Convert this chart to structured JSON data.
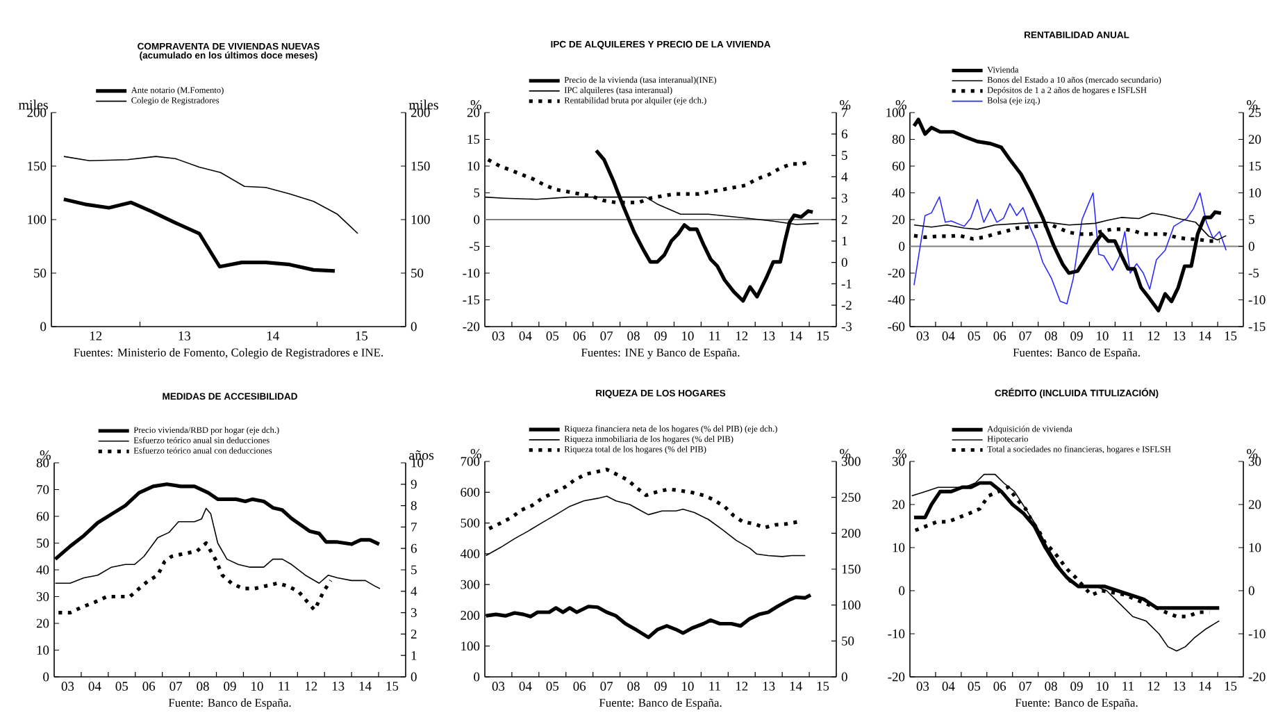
{
  "chart_data": [
    {
      "type": "line",
      "title": "COMPRAVENTA DE VIVIENDAS NUEVAS",
      "subtitle": "(acumulado en los últimos doce meses)",
      "ylabel": "miles",
      "y2label": "miles",
      "legend": "top",
      "xlim": [
        11.5,
        15.5
      ],
      "xticks": [
        {
          "value": 12,
          "label": "12"
        },
        {
          "value": 12.5,
          "label": null
        },
        {
          "value": 13,
          "label": "13"
        },
        {
          "value": 14,
          "label": "14"
        },
        {
          "value": 14.5,
          "label": null
        },
        {
          "value": 15,
          "label": "15"
        }
      ],
      "ylim": [
        0,
        200
      ],
      "yticks": [
        0,
        50,
        100,
        150,
        200
      ],
      "y2lim": [
        0,
        200
      ],
      "y2ticks": [
        0,
        50,
        100,
        150,
        200
      ],
      "series": [
        {
          "name": "Ante notario (M.Fomento)",
          "color": "#000000",
          "x": [
            11.64,
            11.9,
            12.15,
            12.4,
            12.62,
            12.9,
            13.17,
            13.4,
            13.65,
            13.92,
            14.19,
            14.46,
            14.7
          ],
          "values": [
            119,
            114,
            111,
            116,
            108,
            97,
            87,
            56,
            60,
            60,
            58,
            53,
            52
          ]
        },
        {
          "name": "Colegio de Registradores",
          "color": "#000000",
          "x": [
            11.64,
            11.93,
            12.36,
            12.68,
            12.9,
            13.17,
            13.41,
            13.68,
            13.92,
            14.19,
            14.46,
            14.73,
            14.96
          ],
          "values": [
            159,
            155,
            156,
            159,
            157,
            149,
            144,
            131,
            130,
            124,
            117,
            105,
            87
          ]
        }
      ],
      "annotations": [
        "Fuentes: Ministerio de Fomento, Colegio de Registradores e INE."
      ]
    },
    {
      "type": "line",
      "title": "IPC DE ALQUILERES Y PRECIO DE LA VIVIENDA",
      "ylabel": "%",
      "y2label": "%",
      "legend": "top",
      "xlim": [
        2.5,
        15.5
      ],
      "xticks": [
        {
          "value": 3,
          "label": "03"
        },
        {
          "value": 3.5,
          "label": null
        },
        {
          "value": 4,
          "label": "04"
        },
        {
          "value": 4.5,
          "label": null
        },
        {
          "value": 5,
          "label": "05"
        },
        {
          "value": 5.5,
          "label": null
        },
        {
          "value": 6,
          "label": "06"
        },
        {
          "value": 6.5,
          "label": null
        },
        {
          "value": 7,
          "label": "07"
        },
        {
          "value": 7.5,
          "label": null
        },
        {
          "value": 8,
          "label": "08"
        },
        {
          "value": 8.5,
          "label": null
        },
        {
          "value": 9,
          "label": "09"
        },
        {
          "value": 9.5,
          "label": null
        },
        {
          "value": 10,
          "label": "10"
        },
        {
          "value": 10.5,
          "label": null
        },
        {
          "value": 11,
          "label": "11"
        },
        {
          "value": 11.5,
          "label": null
        },
        {
          "value": 12,
          "label": "12"
        },
        {
          "value": 12.5,
          "label": null
        },
        {
          "value": 13,
          "label": "13"
        },
        {
          "value": 13.5,
          "label": null
        },
        {
          "value": 14,
          "label": "14"
        },
        {
          "value": 14.5,
          "label": null
        },
        {
          "value": 15,
          "label": "15"
        }
      ],
      "ylim": [
        -20,
        20
      ],
      "yticks": [
        -20,
        -15,
        -10,
        -5,
        0,
        5,
        10,
        15,
        20
      ],
      "y2lim": [
        -3,
        7
      ],
      "y2ticks": [
        -3,
        -2,
        -1,
        0,
        1,
        2,
        3,
        4,
        5,
        6,
        7
      ],
      "ref_lines": [
        {
          "axis": "y",
          "value": 0,
          "color": "#808080"
        }
      ],
      "series": [
        {
          "name": "Precio de la vivienda (tasa interanual)(INE)",
          "color": "#000000",
          "x": [
            6.62,
            6.91,
            7.25,
            7.59,
            8.02,
            8.37,
            8.62,
            8.88,
            9.14,
            9.4,
            9.65,
            9.88,
            10.08,
            10.34,
            10.6,
            10.85,
            11.1,
            11.37,
            11.71,
            12.05,
            12.31,
            12.57,
            12.91,
            13.17,
            13.43,
            13.6,
            13.77,
            13.94,
            14.2,
            14.46,
            14.63
          ],
          "values": [
            12.9,
            11.2,
            7.3,
            2.9,
            -2.3,
            -5.7,
            -7.9,
            -7.9,
            -6.6,
            -4.0,
            -2.7,
            -1.0,
            -1.8,
            -1.8,
            -4.8,
            -7.4,
            -8.7,
            -11.3,
            -13.5,
            -15.2,
            -12.6,
            -14.4,
            -10.9,
            -7.9,
            -7.9,
            -4.0,
            -0.5,
            0.8,
            0.5,
            1.6,
            1.4
          ]
        },
        {
          "name": "IPC alquileres (tasa interanual)",
          "color": "#000000",
          "x": [
            2.5,
            3.22,
            4.42,
            5.62,
            7.34,
            8.45,
            8.88,
            9.74,
            10.77,
            12.14,
            13.17,
            14.03,
            14.85
          ],
          "values": [
            4.2,
            4.0,
            3.8,
            4.2,
            4.2,
            4.2,
            2.9,
            1.0,
            1.0,
            0.3,
            -0.3,
            -0.9,
            -0.7
          ]
        },
        {
          "name": "Rentabilidad bruta por alquiler (eje dch.)",
          "color": "#000000",
          "axis": "y2",
          "line_style": "dotted",
          "x": [
            2.62,
            3.05,
            3.48,
            3.87,
            4.28,
            4.73,
            5.14,
            5.59,
            6.0,
            6.45,
            6.86,
            7.34,
            7.77,
            8.19,
            8.62,
            9.05,
            9.53,
            10.0,
            10.42,
            10.85,
            11.28,
            11.71,
            12.14,
            12.57,
            13.0,
            13.43,
            13.82,
            14.2,
            14.54
          ],
          "values": [
            4.8,
            4.5,
            4.3,
            4.1,
            3.9,
            3.6,
            3.4,
            3.3,
            3.2,
            3.1,
            2.9,
            2.8,
            2.8,
            2.8,
            3.0,
            3.1,
            3.2,
            3.2,
            3.2,
            3.3,
            3.4,
            3.5,
            3.6,
            3.9,
            4.1,
            4.4,
            4.6,
            4.6,
            4.7
          ]
        }
      ],
      "annotations": [
        "Fuentes: INE y Banco de España."
      ]
    },
    {
      "type": "line",
      "title": "RENTABILIDAD ANUAL",
      "ylabel": "%",
      "y2label": "%",
      "legend": "top",
      "xlim": [
        2.5,
        15.5
      ],
      "xticks": [
        {
          "value": 3,
          "label": "03"
        },
        {
          "value": 3.5,
          "label": null
        },
        {
          "value": 4,
          "label": "04"
        },
        {
          "value": 4.5,
          "label": null
        },
        {
          "value": 5,
          "label": "05"
        },
        {
          "value": 5.5,
          "label": null
        },
        {
          "value": 6,
          "label": "06"
        },
        {
          "value": 6.5,
          "label": null
        },
        {
          "value": 7,
          "label": "07"
        },
        {
          "value": 7.5,
          "label": null
        },
        {
          "value": 8,
          "label": "08"
        },
        {
          "value": 8.5,
          "label": null
        },
        {
          "value": 9,
          "label": "09"
        },
        {
          "value": 9.5,
          "label": null
        },
        {
          "value": 10,
          "label": "10"
        },
        {
          "value": 10.5,
          "label": null
        },
        {
          "value": 11,
          "label": "11"
        },
        {
          "value": 11.5,
          "label": null
        },
        {
          "value": 12,
          "label": "12"
        },
        {
          "value": 12.5,
          "label": null
        },
        {
          "value": 13,
          "label": "13"
        },
        {
          "value": 13.5,
          "label": null
        },
        {
          "value": 14,
          "label": "14"
        },
        {
          "value": 14.5,
          "label": null
        },
        {
          "value": 15,
          "label": "15"
        }
      ],
      "ylim": [
        -60,
        100
      ],
      "yticks": [
        -60,
        -40,
        -20,
        0,
        20,
        40,
        60,
        80,
        100
      ],
      "y2lim": [
        -15,
        25
      ],
      "y2ticks": [
        -15,
        -10,
        -5,
        0,
        5,
        10,
        15,
        20,
        25
      ],
      "ref_lines": [
        {
          "axis": "y",
          "value": 0,
          "color": "#808080"
        }
      ],
      "series": [
        {
          "name": "Vivienda",
          "color": "#000000",
          "axis": "y2",
          "x": [
            2.66,
            2.83,
            3.09,
            3.34,
            3.68,
            4.19,
            4.62,
            5.13,
            5.64,
            6.06,
            6.4,
            6.83,
            7.25,
            7.68,
            8.11,
            8.45,
            8.7,
            9.04,
            9.38,
            9.72,
            9.98,
            10.23,
            10.49,
            10.74,
            11.0,
            11.26,
            11.51,
            11.85,
            12.19,
            12.45,
            12.7,
            12.96,
            13.21,
            13.47,
            13.72,
            13.98,
            14.23,
            14.4,
            14.63
          ],
          "values": [
            22.5,
            23.7,
            21,
            22.2,
            21.4,
            21.4,
            20.5,
            19.6,
            19.2,
            18.5,
            16.2,
            13.5,
            9.7,
            5.3,
            0.1,
            -3.3,
            -5,
            -4.6,
            -2,
            0.6,
            2.3,
            1,
            1,
            -1.6,
            -4.2,
            -4.2,
            -7.7,
            -9.8,
            -12,
            -8.9,
            -10.3,
            -7.7,
            -3.7,
            -3.7,
            2.3,
            5.4,
            5.4,
            6.4,
            6.2
          ]
        },
        {
          "name": "Bonos del Estado a 10 años (mercado secundario)",
          "color": "#000000",
          "axis": "y2",
          "x": [
            2.66,
            3.34,
            3.94,
            4.62,
            5.13,
            5.81,
            6.83,
            7.85,
            8.7,
            9.72,
            10.23,
            10.74,
            11.43,
            11.94,
            12.45,
            12.96,
            13.64,
            14.15,
            14.49,
            14.83
          ],
          "values": [
            4.0,
            3.6,
            4.0,
            3.4,
            3.2,
            4.0,
            4.3,
            4.5,
            4.0,
            4.3,
            4.9,
            5.4,
            5.2,
            6.2,
            5.8,
            5.2,
            4.5,
            1.9,
            1.2,
            2.0
          ]
        },
        {
          "name": "Depósitos de 1 a 2 años de hogares e ISFLSH",
          "color": "#000000",
          "axis": "y2",
          "line_style": "dotted",
          "x": [
            2.66,
            3.09,
            3.6,
            4.02,
            4.45,
            4.96,
            5.38,
            5.81,
            6.23,
            6.66,
            7.08,
            7.51,
            8.02,
            8.7,
            9.13,
            9.55,
            9.98,
            10.4,
            10.83,
            11.17,
            11.6,
            12.02,
            12.45,
            12.87,
            13.3,
            13.72,
            14.15,
            14.57
          ],
          "values": [
            2.0,
            1.7,
            1.9,
            1.9,
            2.0,
            1.4,
            1.7,
            2.3,
            2.8,
            3.4,
            3.6,
            3.8,
            4.0,
            2.6,
            2.3,
            2.3,
            2.8,
            3.2,
            3.2,
            3.0,
            2.3,
            2.3,
            2.3,
            1.7,
            1.4,
            1.3,
            1.0,
            1.0
          ]
        },
        {
          "name": "Bolsa (eje izq.)",
          "color": "#2a2aff",
          "x": [
            2.66,
            3.09,
            3.34,
            3.65,
            3.88,
            4.11,
            4.62,
            4.87,
            5.13,
            5.38,
            5.64,
            5.89,
            6.15,
            6.4,
            6.66,
            6.91,
            7.17,
            7.42,
            7.68,
            8.02,
            8.36,
            8.62,
            8.87,
            9.21,
            9.38,
            9.64,
            9.86,
            10.06,
            10.4,
            10.66,
            10.88,
            11.09,
            11.34,
            11.6,
            11.85,
            12.11,
            12.45,
            12.79,
            13.3,
            13.55,
            13.81,
            14.06,
            14.32,
            14.57,
            14.83
          ],
          "values": [
            -29,
            23,
            25,
            37,
            18,
            19,
            15,
            21,
            35,
            18,
            28,
            18,
            21,
            32,
            23,
            29,
            15,
            4,
            -12,
            -24,
            -41,
            -43,
            -24,
            20,
            28,
            40,
            -6,
            -7,
            -18,
            -8,
            11,
            -20,
            -13,
            -20,
            -32,
            -10,
            -3,
            15,
            21,
            28,
            40,
            18,
            6,
            11,
            -3
          ]
        }
      ],
      "annotations": [
        "Fuentes: Banco de España."
      ]
    },
    {
      "type": "line",
      "title": "MEDIDAS DE ACCESIBILIDAD",
      "ylabel": "%",
      "y2label": "años",
      "legend": "top",
      "xlim": [
        2.5,
        15.5
      ],
      "xticks": [
        {
          "value": 3,
          "label": "03"
        },
        {
          "value": 3.5,
          "label": null
        },
        {
          "value": 4,
          "label": "04"
        },
        {
          "value": 4.5,
          "label": null
        },
        {
          "value": 5,
          "label": "05"
        },
        {
          "value": 5.5,
          "label": null
        },
        {
          "value": 6,
          "label": "06"
        },
        {
          "value": 6.5,
          "label": null
        },
        {
          "value": 7,
          "label": "07"
        },
        {
          "value": 7.5,
          "label": null
        },
        {
          "value": 8,
          "label": "08"
        },
        {
          "value": 8.5,
          "label": null
        },
        {
          "value": 9,
          "label": "09"
        },
        {
          "value": 9.5,
          "label": null
        },
        {
          "value": 10,
          "label": "10"
        },
        {
          "value": 10.5,
          "label": null
        },
        {
          "value": 11,
          "label": "11"
        },
        {
          "value": 11.5,
          "label": null
        },
        {
          "value": 12,
          "label": "12"
        },
        {
          "value": 12.5,
          "label": null
        },
        {
          "value": 13,
          "label": "13"
        },
        {
          "value": 13.5,
          "label": null
        },
        {
          "value": 14,
          "label": "14"
        },
        {
          "value": 14.5,
          "label": null
        },
        {
          "value": 15,
          "label": "15"
        }
      ],
      "ylim": [
        0,
        80
      ],
      "yticks": [
        0,
        10,
        20,
        30,
        40,
        50,
        60,
        70,
        80
      ],
      "y2lim": [
        0,
        10
      ],
      "y2ticks": [
        0,
        1,
        2,
        3,
        4,
        5,
        6,
        7,
        8,
        9,
        10
      ],
      "series": [
        {
          "name": "Precio vivienda/RBD por hogar (eje dch.)",
          "color": "#000000",
          "axis": "y2",
          "x": [
            2.54,
            3.09,
            3.6,
            4.11,
            4.62,
            5.13,
            5.64,
            6.16,
            6.67,
            7.18,
            7.69,
            8.2,
            8.55,
            9.23,
            9.57,
            9.83,
            10.25,
            10.59,
            10.93,
            11.28,
            11.62,
            11.96,
            12.3,
            12.56,
            12.98,
            13.5,
            13.84,
            14.18,
            14.52
          ],
          "values": [
            5.5,
            6.1,
            6.6,
            7.2,
            7.6,
            8.0,
            8.6,
            8.9,
            9.0,
            8.9,
            8.9,
            8.6,
            8.3,
            8.3,
            8.2,
            8.3,
            8.2,
            7.9,
            7.8,
            7.4,
            7.1,
            6.8,
            6.7,
            6.3,
            6.3,
            6.2,
            6.4,
            6.4,
            6.2
          ]
        },
        {
          "name": "Esfuerzo teórico anual sin deducciones",
          "color": "#000000",
          "x": [
            2.54,
            3.09,
            3.6,
            4.11,
            4.62,
            5.13,
            5.47,
            5.82,
            6.33,
            6.75,
            7.1,
            7.69,
            7.95,
            8.12,
            8.29,
            8.55,
            8.89,
            9.31,
            9.74,
            10.0,
            10.25,
            10.59,
            10.94,
            11.28,
            11.79,
            12.3,
            12.64,
            12.98,
            13.5,
            14.01,
            14.35,
            14.55
          ],
          "values": [
            35,
            35,
            37,
            38,
            41,
            42,
            42,
            45,
            52,
            54,
            58,
            58,
            59,
            63,
            61,
            50,
            44,
            42,
            41,
            41,
            41,
            44,
            44,
            42,
            38,
            35,
            38,
            37,
            36,
            36,
            34,
            33
          ]
        },
        {
          "name": "Esfuerzo teórico anual con deducciones",
          "color": "#000000",
          "line_style": "dotted",
          "x": [
            2.66,
            3.09,
            3.51,
            4.02,
            4.45,
            4.88,
            5.3,
            5.64,
            5.99,
            6.33,
            6.58,
            6.84,
            7.27,
            7.78,
            8.12,
            8.46,
            8.72,
            9.06,
            9.48,
            9.91,
            10.34,
            10.76,
            11.11,
            11.53,
            11.87,
            12.13,
            12.47,
            12.73
          ],
          "values": [
            24,
            24,
            26,
            28,
            30,
            30,
            30,
            33,
            36,
            38,
            43,
            45,
            46,
            47,
            50,
            44,
            38,
            35,
            33,
            33,
            34,
            35,
            34,
            32,
            28,
            25,
            32,
            36
          ]
        }
      ],
      "annotations": [
        "Fuente: Banco de España."
      ]
    },
    {
      "type": "line",
      "title": "RIQUEZA DE LOS HOGARES",
      "ylabel": "%",
      "y2label": "%",
      "legend": "top",
      "xlim": [
        2.5,
        15.5
      ],
      "xticks": [
        {
          "value": 3,
          "label": "03"
        },
        {
          "value": 3.5,
          "label": null
        },
        {
          "value": 4,
          "label": "04"
        },
        {
          "value": 4.5,
          "label": null
        },
        {
          "value": 5,
          "label": "05"
        },
        {
          "value": 5.5,
          "label": null
        },
        {
          "value": 6,
          "label": "06"
        },
        {
          "value": 6.5,
          "label": null
        },
        {
          "value": 7,
          "label": "07"
        },
        {
          "value": 7.5,
          "label": null
        },
        {
          "value": 8,
          "label": "08"
        },
        {
          "value": 8.5,
          "label": null
        },
        {
          "value": 9,
          "label": "09"
        },
        {
          "value": 9.5,
          "label": null
        },
        {
          "value": 10,
          "label": "10"
        },
        {
          "value": 10.5,
          "label": null
        },
        {
          "value": 11,
          "label": "11"
        },
        {
          "value": 11.5,
          "label": null
        },
        {
          "value": 12,
          "label": "12"
        },
        {
          "value": 12.5,
          "label": null
        },
        {
          "value": 13,
          "label": "13"
        },
        {
          "value": 13.5,
          "label": null
        },
        {
          "value": 14,
          "label": "14"
        },
        {
          "value": 14.5,
          "label": null
        },
        {
          "value": 15,
          "label": "15"
        }
      ],
      "ylim": [
        0,
        700
      ],
      "yticks": [
        0,
        100,
        200,
        300,
        400,
        500,
        600,
        700
      ],
      "y2lim": [
        0,
        300
      ],
      "y2ticks": [
        0,
        50,
        100,
        150,
        200,
        250,
        300
      ],
      "series": [
        {
          "name": "Riqueza financiera neta de los hogares (% del PIB) (eje dch.)",
          "color": "#000000",
          "axis": "y2",
          "x": [
            2.54,
            2.91,
            3.26,
            3.6,
            3.93,
            4.19,
            4.45,
            4.88,
            5.13,
            5.39,
            5.64,
            5.9,
            6.33,
            6.67,
            7.01,
            7.35,
            7.7,
            8.12,
            8.55,
            8.89,
            9.23,
            9.57,
            9.83,
            10.17,
            10.59,
            10.85,
            11.19,
            11.62,
            11.96,
            12.3,
            12.64,
            12.98,
            13.32,
            13.75,
            14.0,
            14.35,
            14.55
          ],
          "values": [
            85,
            87,
            85,
            89,
            87,
            84,
            90,
            90,
            96,
            90,
            96,
            90,
            98,
            97,
            90,
            85,
            74,
            65,
            55,
            66,
            71,
            66,
            61,
            68,
            74,
            79,
            74,
            74,
            71,
            81,
            87,
            90,
            98,
            107,
            111,
            110,
            114
          ]
        },
        {
          "name": "Riqueza inmobiliaria de los hogares (% del PIB)",
          "color": "#000000",
          "x": [
            2.54,
            3.09,
            3.6,
            4.11,
            4.62,
            5.13,
            5.64,
            6.16,
            6.67,
            7.01,
            7.35,
            7.86,
            8.29,
            8.55,
            9.06,
            9.57,
            9.83,
            10.25,
            10.76,
            11.28,
            11.79,
            12.3,
            12.56,
            12.98,
            13.5,
            13.84,
            14.35
          ],
          "values": [
            394,
            421,
            449,
            474,
            501,
            527,
            554,
            572,
            580,
            587,
            572,
            560,
            539,
            527,
            539,
            539,
            545,
            534,
            512,
            479,
            444,
            418,
            399,
            394,
            391,
            394,
            394
          ]
        },
        {
          "name": "Riqueza total de los hogares (% del PIB)",
          "color": "#000000",
          "line_style": "dotted",
          "x": [
            2.66,
            3.09,
            3.51,
            3.85,
            4.25,
            4.62,
            5.05,
            5.47,
            5.82,
            6.25,
            6.58,
            7.01,
            7.35,
            7.78,
            8.12,
            8.46,
            8.89,
            9.31,
            9.74,
            10.17,
            10.59,
            10.93,
            11.36,
            11.7,
            12.04,
            12.47,
            12.84,
            13.24,
            13.66,
            14.09
          ],
          "values": [
            482,
            500,
            519,
            542,
            557,
            580,
            599,
            617,
            640,
            659,
            665,
            674,
            659,
            640,
            614,
            590,
            602,
            610,
            605,
            599,
            590,
            577,
            554,
            524,
            504,
            497,
            485,
            494,
            497,
            504
          ]
        }
      ],
      "annotations": [
        "Fuente: Banco de España."
      ]
    },
    {
      "type": "line",
      "title": "CRÉDITO (INCLUIDA TITULIZACIÓN)",
      "ylabel": "%",
      "y2label": "%",
      "legend": "top",
      "xlim": [
        2.5,
        15.5
      ],
      "xticks": [
        {
          "value": 3,
          "label": "03"
        },
        {
          "value": 3.5,
          "label": null
        },
        {
          "value": 4,
          "label": "04"
        },
        {
          "value": 4.5,
          "label": null
        },
        {
          "value": 5,
          "label": "05"
        },
        {
          "value": 5.5,
          "label": null
        },
        {
          "value": 6,
          "label": "06"
        },
        {
          "value": 6.5,
          "label": null
        },
        {
          "value": 7,
          "label": "07"
        },
        {
          "value": 7.5,
          "label": null
        },
        {
          "value": 8,
          "label": "08"
        },
        {
          "value": 8.5,
          "label": null
        },
        {
          "value": 9,
          "label": "09"
        },
        {
          "value": 9.5,
          "label": null
        },
        {
          "value": 10,
          "label": "10"
        },
        {
          "value": 10.5,
          "label": null
        },
        {
          "value": 11,
          "label": "11"
        },
        {
          "value": 11.5,
          "label": null
        },
        {
          "value": 12,
          "label": "12"
        },
        {
          "value": 12.5,
          "label": null
        },
        {
          "value": 13,
          "label": "13"
        },
        {
          "value": 13.5,
          "label": null
        },
        {
          "value": 14,
          "label": "14"
        },
        {
          "value": 14.5,
          "label": null
        },
        {
          "value": 15,
          "label": "15"
        }
      ],
      "ylim": [
        -20,
        30
      ],
      "yticks": [
        -20,
        -10,
        0,
        10,
        20,
        30
      ],
      "y2lim": [
        -20,
        30
      ],
      "y2ticks": [
        -20,
        -10,
        0,
        10,
        20,
        30
      ],
      "series": [
        {
          "name": "Adquisición de vivienda",
          "color": "#000000",
          "x": [
            2.66,
            3.09,
            3.34,
            3.68,
            4.11,
            4.54,
            4.88,
            5.22,
            5.65,
            6.07,
            6.5,
            6.92,
            7.35,
            7.78,
            8.2,
            8.63,
            9.06,
            9.57,
            10.08,
            10.59,
            11.11,
            11.62,
            12.13,
            12.64,
            13.15,
            13.66,
            14.18,
            14.56
          ],
          "values": [
            17,
            17,
            20,
            23,
            23,
            24,
            24,
            25,
            25,
            23,
            20,
            18,
            15,
            10,
            6,
            3,
            1,
            1,
            1,
            0,
            -1,
            -2,
            -4,
            -4,
            -4,
            -4,
            -4,
            -4
          ]
        },
        {
          "name": "Hipotecario",
          "color": "#000000",
          "x": [
            2.57,
            3.09,
            3.6,
            4.11,
            4.62,
            5.05,
            5.39,
            5.82,
            6.16,
            6.58,
            7.01,
            7.44,
            7.87,
            8.29,
            8.72,
            9.23,
            9.74,
            10.17,
            10.68,
            11.19,
            11.7,
            12.21,
            12.56,
            12.9,
            13.24,
            13.58,
            14.01,
            14.56
          ],
          "values": [
            22,
            23,
            24,
            24,
            24,
            25,
            27,
            27,
            25,
            23,
            19,
            15,
            10,
            6,
            2,
            1,
            1,
            0,
            -3,
            -6,
            -7,
            -10,
            -13,
            -14,
            -13,
            -11,
            -9,
            -7
          ]
        },
        {
          "name": "Total a sociedades no financieras, hogares e ISFLSH",
          "color": "#000000",
          "line_style": "dotted",
          "x": [
            2.71,
            3.14,
            3.56,
            3.99,
            4.42,
            4.84,
            5.22,
            5.56,
            5.95,
            6.33,
            6.7,
            7.01,
            7.27,
            7.52,
            7.78,
            8.12,
            8.37,
            8.63,
            8.97,
            9.57,
            9.99,
            10.93,
            11.27,
            12.13,
            12.47,
            12.9,
            13.32,
            13.75,
            14.18
          ],
          "values": [
            14,
            15,
            16,
            16,
            17,
            18,
            19,
            22,
            23,
            24,
            21,
            19,
            16,
            14,
            11,
            9,
            7,
            5,
            3,
            -1,
            0,
            -1,
            -2,
            -4,
            -5,
            -6,
            -6,
            -5,
            -5
          ]
        }
      ],
      "annotations": [
        "Fuente: Banco de España."
      ]
    }
  ]
}
